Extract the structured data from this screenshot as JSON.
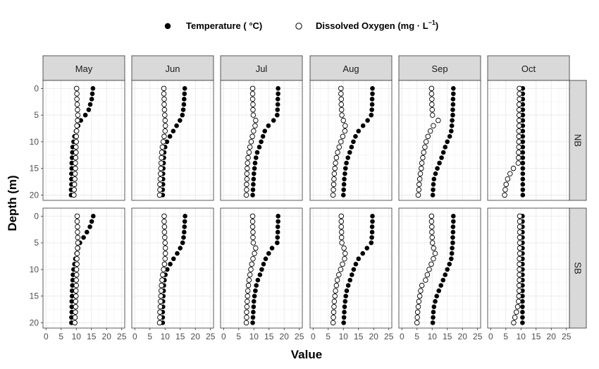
{
  "chart_data": {
    "type": "scatter",
    "facets": {
      "columns": [
        "May",
        "Jun",
        "Jul",
        "Aug",
        "Sep",
        "Oct"
      ],
      "rows": [
        "NB",
        "SB"
      ]
    },
    "legend": {
      "position": "top",
      "temperature_label": "Temperature ( °C)",
      "oxygen_label": "Dissolved Oxygen (mg · L",
      "oxygen_label_sup": "−1",
      "oxygen_label_end": ")"
    },
    "xlabel": "Value",
    "ylabel": "Depth (m)",
    "xlim": [
      -1,
      26
    ],
    "ylim": [
      21,
      -1.5
    ],
    "x_ticks": [
      "0",
      "5",
      "10",
      "15",
      "20",
      "25"
    ],
    "y_ticks": [
      "0",
      "5",
      "10",
      "15",
      "20"
    ],
    "grid": true,
    "colors": {
      "temperature": "#000000",
      "oxygen_fill": "#ffffff",
      "oxygen_stroke": "#000000",
      "strip_bg": "#d9d9d9",
      "grid": "#ebebeb"
    },
    "depths": [
      0,
      1,
      2,
      3,
      4,
      5,
      6,
      7,
      8,
      9,
      10,
      11,
      12,
      13,
      14,
      15,
      16,
      17,
      18,
      19,
      20
    ],
    "panels": [
      {
        "row": "NB",
        "col": "May",
        "temperature": [
          15.5,
          15.3,
          15.1,
          14.6,
          14.1,
          13.0,
          11.5,
          10.6,
          9.9,
          9.4,
          9.1,
          8.8,
          8.7,
          8.6,
          8.5,
          8.5,
          8.4,
          8.4,
          8.4,
          8.3,
          8.3
        ],
        "oxygen": [
          10.1,
          10.2,
          10.2,
          10.3,
          10.4,
          10.5,
          10.4,
          10.2,
          10.1,
          10.0,
          10.0,
          9.9,
          9.9,
          9.8,
          9.7,
          9.7,
          9.6,
          9.5,
          9.4,
          9.3,
          9.2
        ]
      },
      {
        "row": "NB",
        "col": "Jun",
        "temperature": [
          16.5,
          16.4,
          16.3,
          16.2,
          16.0,
          15.7,
          14.9,
          13.8,
          12.7,
          11.6,
          10.6,
          10.0,
          9.7,
          9.6,
          9.5,
          9.4,
          9.3,
          9.3,
          9.3,
          9.2,
          9.2
        ],
        "oxygen": [
          9.6,
          9.6,
          9.7,
          9.7,
          9.8,
          9.9,
          10.0,
          10.1,
          10.0,
          9.7,
          9.4,
          9.1,
          8.9,
          8.8,
          8.7,
          8.6,
          8.5,
          8.4,
          8.3,
          8.3,
          8.2
        ]
      },
      {
        "row": "NB",
        "col": "Jul",
        "temperature": [
          18.0,
          18.0,
          17.9,
          17.9,
          17.8,
          17.7,
          16.5,
          14.8,
          13.6,
          13.0,
          12.4,
          11.8,
          11.1,
          10.7,
          10.4,
          10.2,
          10.0,
          9.9,
          9.8,
          9.7,
          9.6
        ],
        "oxygen": [
          9.6,
          9.6,
          9.6,
          9.7,
          9.7,
          9.8,
          10.6,
          10.4,
          9.9,
          9.5,
          9.1,
          8.7,
          8.4,
          8.1,
          7.9,
          7.8,
          7.7,
          7.7,
          7.6,
          7.6,
          7.5
        ]
      },
      {
        "row": "NB",
        "col": "Aug",
        "temperature": [
          19.6,
          19.6,
          19.5,
          19.5,
          19.4,
          19.2,
          18.0,
          16.5,
          15.0,
          14.0,
          13.3,
          12.7,
          12.1,
          11.5,
          11.0,
          10.7,
          10.5,
          10.3,
          10.2,
          10.1,
          10.0
        ],
        "oxygen": [
          9.2,
          9.2,
          9.3,
          9.3,
          9.4,
          9.5,
          10.0,
          10.6,
          10.5,
          9.8,
          9.2,
          8.6,
          8.1,
          7.7,
          7.4,
          7.2,
          7.0,
          6.9,
          6.8,
          6.7,
          6.6
        ]
      },
      {
        "row": "NB",
        "col": "Sep",
        "temperature": [
          17.0,
          17.0,
          16.9,
          16.9,
          16.8,
          16.8,
          16.6,
          16.5,
          16.3,
          15.8,
          15.0,
          14.3,
          13.7,
          13.1,
          12.4,
          11.7,
          11.1,
          10.6,
          10.4,
          10.3,
          10.2
        ],
        "oxygen": [
          9.8,
          9.8,
          9.9,
          9.9,
          10.0,
          10.1,
          12.0,
          10.4,
          9.4,
          8.6,
          8.0,
          7.6,
          7.2,
          6.9,
          6.6,
          6.4,
          6.1,
          5.9,
          5.7,
          5.6,
          5.4
        ]
      },
      {
        "row": "NB",
        "col": "Oct",
        "temperature": [
          10.6,
          10.6,
          10.6,
          10.6,
          10.6,
          10.6,
          10.6,
          10.6,
          10.6,
          10.6,
          10.6,
          10.6,
          10.6,
          10.6,
          10.6,
          10.6,
          10.6,
          10.6,
          10.6,
          10.6,
          10.6
        ],
        "oxygen": [
          9.5,
          9.5,
          9.5,
          9.4,
          9.4,
          9.4,
          9.4,
          9.4,
          9.3,
          9.3,
          9.3,
          9.3,
          9.2,
          9.2,
          9.1,
          7.5,
          6.4,
          5.6,
          5.1,
          4.8,
          4.6
        ]
      },
      {
        "row": "SB",
        "col": "May",
        "temperature": [
          15.6,
          15.1,
          14.5,
          13.5,
          12.4,
          11.2,
          10.6,
          10.1,
          9.7,
          9.4,
          9.1,
          8.9,
          8.8,
          8.7,
          8.6,
          8.6,
          8.5,
          8.5,
          8.5,
          8.4,
          8.4
        ],
        "oxygen": [
          10.3,
          10.3,
          10.4,
          10.4,
          10.5,
          10.5,
          10.4,
          10.3,
          10.2,
          10.2,
          10.1,
          10.1,
          10.0,
          10.0,
          9.9,
          9.9,
          9.8,
          9.8,
          9.7,
          9.6,
          9.5
        ]
      },
      {
        "row": "SB",
        "col": "Jun",
        "temperature": [
          16.6,
          16.5,
          16.4,
          16.3,
          16.1,
          15.8,
          15.0,
          14.0,
          12.8,
          11.7,
          10.7,
          10.1,
          9.8,
          9.6,
          9.5,
          9.4,
          9.3,
          9.3,
          9.2,
          9.2,
          9.2
        ],
        "oxygen": [
          9.7,
          9.7,
          9.8,
          9.8,
          9.9,
          10.0,
          10.1,
          10.1,
          10.0,
          9.8,
          9.5,
          9.2,
          9.0,
          8.8,
          8.7,
          8.6,
          8.5,
          8.4,
          8.3,
          8.3,
          8.2
        ]
      },
      {
        "row": "SB",
        "col": "Jul",
        "temperature": [
          18.0,
          18.0,
          17.9,
          17.9,
          17.8,
          17.7,
          16.0,
          14.9,
          13.9,
          13.2,
          12.6,
          12.0,
          11.3,
          10.8,
          10.5,
          10.2,
          10.0,
          9.9,
          9.8,
          9.7,
          9.6
        ],
        "oxygen": [
          9.6,
          9.6,
          9.6,
          9.7,
          9.7,
          9.8,
          10.6,
          10.2,
          9.7,
          9.3,
          9.0,
          8.7,
          8.4,
          8.2,
          8.0,
          7.9,
          7.8,
          7.7,
          7.6,
          7.6,
          7.5
        ]
      },
      {
        "row": "SB",
        "col": "Aug",
        "temperature": [
          19.6,
          19.6,
          19.5,
          19.5,
          19.4,
          19.2,
          17.8,
          16.4,
          15.0,
          14.1,
          13.4,
          12.8,
          12.2,
          11.6,
          11.1,
          10.8,
          10.6,
          10.4,
          10.3,
          10.2,
          10.1
        ],
        "oxygen": [
          9.3,
          9.3,
          9.3,
          9.4,
          9.4,
          9.5,
          10.2,
          10.6,
          10.4,
          9.7,
          9.1,
          8.5,
          8.0,
          7.7,
          7.4,
          7.2,
          7.0,
          6.9,
          6.8,
          6.7,
          6.6
        ]
      },
      {
        "row": "SB",
        "col": "Sep",
        "temperature": [
          17.0,
          17.0,
          16.9,
          16.9,
          16.8,
          16.8,
          16.6,
          16.5,
          16.3,
          15.7,
          15.0,
          14.3,
          13.6,
          12.9,
          12.2,
          11.5,
          11.0,
          10.6,
          10.4,
          10.3,
          10.2
        ],
        "oxygen": [
          9.8,
          9.8,
          9.9,
          9.9,
          10.0,
          10.1,
          10.5,
          11.0,
          10.4,
          9.7,
          9.0,
          8.4,
          7.8,
          6.6,
          6.2,
          5.9,
          5.6,
          5.4,
          5.2,
          5.1,
          5.0
        ]
      },
      {
        "row": "SB",
        "col": "Oct",
        "temperature": [
          10.5,
          10.5,
          10.5,
          10.5,
          10.5,
          10.5,
          10.5,
          10.5,
          10.5,
          10.5,
          10.5,
          10.5,
          10.5,
          10.5,
          10.5,
          10.5,
          10.5,
          10.5,
          10.5,
          10.5,
          10.5
        ],
        "oxygen": [
          9.6,
          9.6,
          9.6,
          9.6,
          9.6,
          9.6,
          9.6,
          9.6,
          9.5,
          9.5,
          9.5,
          9.5,
          9.5,
          9.4,
          9.4,
          9.3,
          9.2,
          8.9,
          8.5,
          8.0,
          7.6
        ]
      }
    ]
  }
}
